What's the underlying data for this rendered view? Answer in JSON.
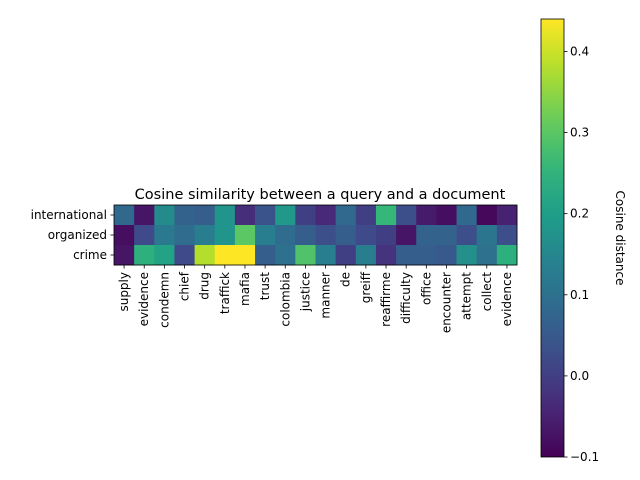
{
  "chart_data": {
    "type": "heatmap",
    "title": "Cosine similarity between a query and a document",
    "rows": [
      "international",
      "organized",
      "crime"
    ],
    "columns": [
      "supply",
      "evidence",
      "condemn",
      "chief",
      "drug",
      "traffick",
      "mafia",
      "trust",
      "colombia",
      "justice",
      "manner",
      "de",
      "greiff",
      "reaffirme",
      "difficulty",
      "office",
      "encounter",
      "attempt",
      "collect",
      "evidence"
    ],
    "values": [
      [
        0.08,
        -0.07,
        0.16,
        0.07,
        0.06,
        0.18,
        -0.03,
        0.04,
        0.19,
        0.0,
        -0.04,
        0.08,
        0.0,
        0.26,
        0.03,
        -0.06,
        -0.08,
        0.08,
        -0.09,
        -0.05
      ],
      [
        -0.08,
        0.02,
        0.12,
        0.09,
        0.13,
        0.18,
        0.3,
        0.13,
        0.09,
        0.06,
        0.03,
        0.06,
        0.02,
        0.0,
        -0.07,
        0.07,
        0.07,
        0.03,
        0.11,
        0.03
      ],
      [
        -0.07,
        0.24,
        0.21,
        0.02,
        0.38,
        0.44,
        0.44,
        0.06,
        0.1,
        0.29,
        0.13,
        0.0,
        0.13,
        -0.02,
        0.06,
        0.06,
        0.05,
        0.17,
        0.1,
        0.24
      ]
    ],
    "colorbar": {
      "label": "Cosine distance",
      "min": -0.1,
      "max": 0.44,
      "ticks": [
        -0.1,
        0.0,
        0.1,
        0.2,
        0.3,
        0.4
      ],
      "tick_labels": [
        "−0.1",
        "0.0",
        "0.1",
        "0.2",
        "0.3",
        "0.4"
      ],
      "colormap": "viridis"
    }
  }
}
